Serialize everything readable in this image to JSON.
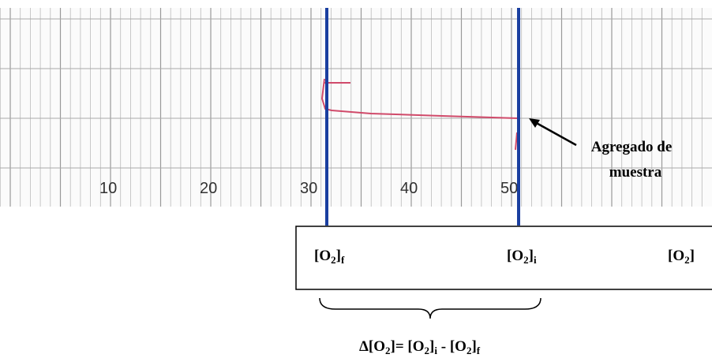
{
  "strip": {
    "scale_labels": [
      "10",
      "20",
      "30",
      "40",
      "50"
    ]
  },
  "annotation": {
    "lines": [
      "Agregado de",
      "muestra"
    ]
  },
  "labels": {
    "final": [
      "[O",
      "2",
      "]",
      "f"
    ],
    "initial": [
      "[O",
      "2",
      "]",
      "i"
    ],
    "axis": [
      "[O",
      "2",
      "]"
    ]
  },
  "formula": [
    "Δ[O",
    "2",
    "]= [O",
    "2",
    "]",
    "i",
    " - [O",
    "2",
    "]",
    "f"
  ]
}
